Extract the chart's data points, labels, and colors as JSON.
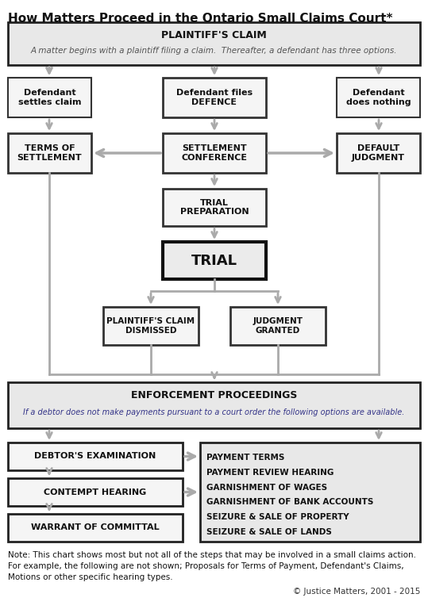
{
  "title": "How Matters Proceed in the Ontario Small Claims Court*",
  "bg_color": "#ffffff",
  "arrow_color": "#aaaaaa",
  "note_text": "Note: This chart shows most but not all of the steps that may be involved in a small claims action.\nFor example, the following are not shown; Proposals for Terms of Payment, Defendant's Claims,\nMotions or other specific hearing types.",
  "copyright": "© Justice Matters, 2001 - 2015",
  "enforcement_note": "If a debtor does not make payments pursuant to a court order the following options are available.",
  "plaintiff_sub": "A matter begins with a plaintiff filing a claim.  Thereafter, a defendant has three options.",
  "options": [
    "PAYMENT TERMS",
    "PAYMENT REVIEW HEARING",
    "GARNISHMENT OF WAGES",
    "GARNISHMENT OF BANK ACCOUNTS",
    "SEIZURE & SALE OF PROPERTY",
    "SEIZURE & SALE OF LANDS"
  ]
}
